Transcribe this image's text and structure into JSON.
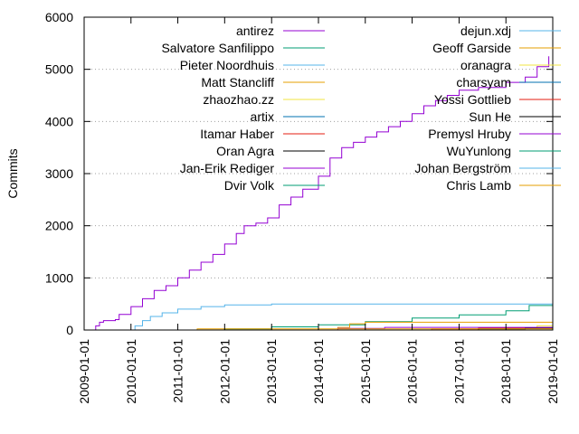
{
  "chart_data": {
    "type": "line",
    "xlabel": "",
    "ylabel": "Commits",
    "x_axis_type": "date",
    "xlim": [
      "2009-01-01",
      "2019-01-01"
    ],
    "ylim": [
      0,
      6000
    ],
    "x_tick_labels": [
      "2009-01-01",
      "2010-01-01",
      "2011-01-01",
      "2012-01-01",
      "2013-01-01",
      "2014-01-01",
      "2015-01-01",
      "2016-01-01",
      "2017-01-01",
      "2018-01-01",
      "2019-01-01"
    ],
    "y_tick_labels": [
      "0",
      "1000",
      "2000",
      "3000",
      "4000",
      "5000",
      "6000"
    ],
    "y_ticks": [
      0,
      1000,
      2000,
      3000,
      4000,
      5000,
      6000
    ],
    "grid": "horizontal dotted",
    "legend_placement": "top, two columns",
    "series": [
      {
        "name": "antirez",
        "color": "#9400d3",
        "points": [
          [
            "2009-03-01",
            0
          ],
          [
            "2009-04-01",
            80
          ],
          [
            "2009-05-01",
            150
          ],
          [
            "2009-06-01",
            180
          ],
          [
            "2009-09-01",
            200
          ],
          [
            "2009-10-01",
            300
          ],
          [
            "2010-01-01",
            450
          ],
          [
            "2010-04-01",
            600
          ],
          [
            "2010-07-01",
            760
          ],
          [
            "2010-10-01",
            850
          ],
          [
            "2011-01-01",
            1000
          ],
          [
            "2011-04-01",
            1150
          ],
          [
            "2011-07-01",
            1300
          ],
          [
            "2011-10-01",
            1450
          ],
          [
            "2012-01-01",
            1650
          ],
          [
            "2012-04-01",
            1850
          ],
          [
            "2012-06-01",
            2000
          ],
          [
            "2012-09-01",
            2050
          ],
          [
            "2012-12-01",
            2150
          ],
          [
            "2013-03-01",
            2400
          ],
          [
            "2013-06-01",
            2550
          ],
          [
            "2013-09-01",
            2700
          ],
          [
            "2014-01-01",
            2950
          ],
          [
            "2014-04-01",
            3300
          ],
          [
            "2014-07-01",
            3500
          ],
          [
            "2014-10-01",
            3600
          ],
          [
            "2015-01-01",
            3700
          ],
          [
            "2015-04-01",
            3800
          ],
          [
            "2015-07-01",
            3900
          ],
          [
            "2015-10-01",
            4000
          ],
          [
            "2016-01-01",
            4150
          ],
          [
            "2016-04-01",
            4300
          ],
          [
            "2016-07-01",
            4400
          ],
          [
            "2016-10-01",
            4500
          ],
          [
            "2017-01-01",
            4600
          ],
          [
            "2017-06-01",
            4650
          ],
          [
            "2018-01-01",
            4750
          ],
          [
            "2018-06-01",
            4850
          ],
          [
            "2018-09-01",
            5050
          ],
          [
            "2018-12-01",
            5250
          ]
        ]
      },
      {
        "name": "Salvatore Sanfilippo",
        "color": "#009e73",
        "points": [
          [
            "2011-06-01",
            0
          ],
          [
            "2012-01-01",
            20
          ],
          [
            "2013-01-01",
            60
          ],
          [
            "2014-01-01",
            100
          ],
          [
            "2015-01-01",
            160
          ],
          [
            "2016-01-01",
            230
          ],
          [
            "2017-01-01",
            290
          ],
          [
            "2018-01-01",
            370
          ],
          [
            "2018-07-01",
            470
          ],
          [
            "2019-01-01",
            580
          ]
        ]
      },
      {
        "name": "Pieter Noordhuis",
        "color": "#56b4e9",
        "points": [
          [
            "2009-10-01",
            0
          ],
          [
            "2010-02-01",
            80
          ],
          [
            "2010-04-01",
            180
          ],
          [
            "2010-06-01",
            260
          ],
          [
            "2010-09-01",
            330
          ],
          [
            "2011-01-01",
            400
          ],
          [
            "2011-07-01",
            450
          ],
          [
            "2012-01-01",
            480
          ],
          [
            "2013-01-01",
            500
          ],
          [
            "2019-01-01",
            510
          ]
        ]
      },
      {
        "name": "Matt Stancliff",
        "color": "#e69f00",
        "points": [
          [
            "2014-01-01",
            0
          ],
          [
            "2014-06-01",
            50
          ],
          [
            "2014-09-01",
            120
          ],
          [
            "2015-01-01",
            150
          ],
          [
            "2019-01-01",
            150
          ]
        ]
      },
      {
        "name": "zhaozhao.zz",
        "color": "#f0e442",
        "points": [
          [
            "2017-06-01",
            0
          ],
          [
            "2018-01-01",
            40
          ],
          [
            "2018-09-01",
            80
          ],
          [
            "2019-01-01",
            110
          ]
        ]
      },
      {
        "name": "artix",
        "color": "#0072b2",
        "points": [
          [
            "2018-06-01",
            0
          ],
          [
            "2019-01-01",
            40
          ]
        ]
      },
      {
        "name": "Itamar Haber",
        "color": "#e51e10",
        "points": [
          [
            "2015-06-01",
            0
          ],
          [
            "2016-06-01",
            20
          ],
          [
            "2017-06-01",
            40
          ],
          [
            "2019-01-01",
            70
          ]
        ]
      },
      {
        "name": "Oran Agra",
        "color": "#000000",
        "points": [
          [
            "2016-06-01",
            0
          ],
          [
            "2017-06-01",
            20
          ],
          [
            "2018-06-01",
            40
          ],
          [
            "2019-01-01",
            60
          ]
        ]
      },
      {
        "name": "Jan-Erik Rediger",
        "color": "#9400d3",
        "points": [
          [
            "2014-01-01",
            0
          ],
          [
            "2014-06-01",
            30
          ],
          [
            "2015-06-01",
            50
          ],
          [
            "2019-01-01",
            60
          ]
        ]
      },
      {
        "name": "Dvir Volk",
        "color": "#009e73",
        "points": [
          [
            "2016-06-01",
            0
          ],
          [
            "2019-01-01",
            20
          ]
        ]
      },
      {
        "name": "dejun.xdj",
        "color": "#56b4e9",
        "points": [
          [
            "2017-06-01",
            0
          ],
          [
            "2019-01-01",
            20
          ]
        ]
      },
      {
        "name": "Geoff Garside",
        "color": "#e69f00",
        "points": [
          [
            "2011-01-01",
            0
          ],
          [
            "2011-06-01",
            20
          ],
          [
            "2019-01-01",
            20
          ]
        ]
      },
      {
        "name": "oranagra",
        "color": "#f0e442",
        "points": [
          [
            "2018-01-01",
            0
          ],
          [
            "2019-01-01",
            15
          ]
        ]
      },
      {
        "name": "charsyam",
        "color": "#0072b2",
        "points": [
          [
            "2013-01-01",
            0
          ],
          [
            "2019-01-01",
            15
          ]
        ]
      },
      {
        "name": "Yossi Gottlieb",
        "color": "#e51e10",
        "points": [
          [
            "2013-01-01",
            0
          ],
          [
            "2019-01-01",
            15
          ]
        ]
      },
      {
        "name": "Sun He",
        "color": "#000000",
        "points": [
          [
            "2017-06-01",
            0
          ],
          [
            "2019-01-01",
            15
          ]
        ]
      },
      {
        "name": "Premysl Hruby",
        "color": "#9400d3",
        "points": [
          [
            "2010-06-01",
            0
          ],
          [
            "2019-01-01",
            12
          ]
        ]
      },
      {
        "name": "WuYunlong",
        "color": "#009e73",
        "points": [
          [
            "2018-06-01",
            0
          ],
          [
            "2019-01-01",
            12
          ]
        ]
      },
      {
        "name": "Johan Bergström",
        "color": "#56b4e9",
        "points": [
          [
            "2012-01-01",
            0
          ],
          [
            "2019-01-01",
            10
          ]
        ]
      },
      {
        "name": "Chris Lamb",
        "color": "#e69f00",
        "points": [
          [
            "2017-06-01",
            0
          ],
          [
            "2019-01-01",
            10
          ]
        ]
      }
    ]
  }
}
